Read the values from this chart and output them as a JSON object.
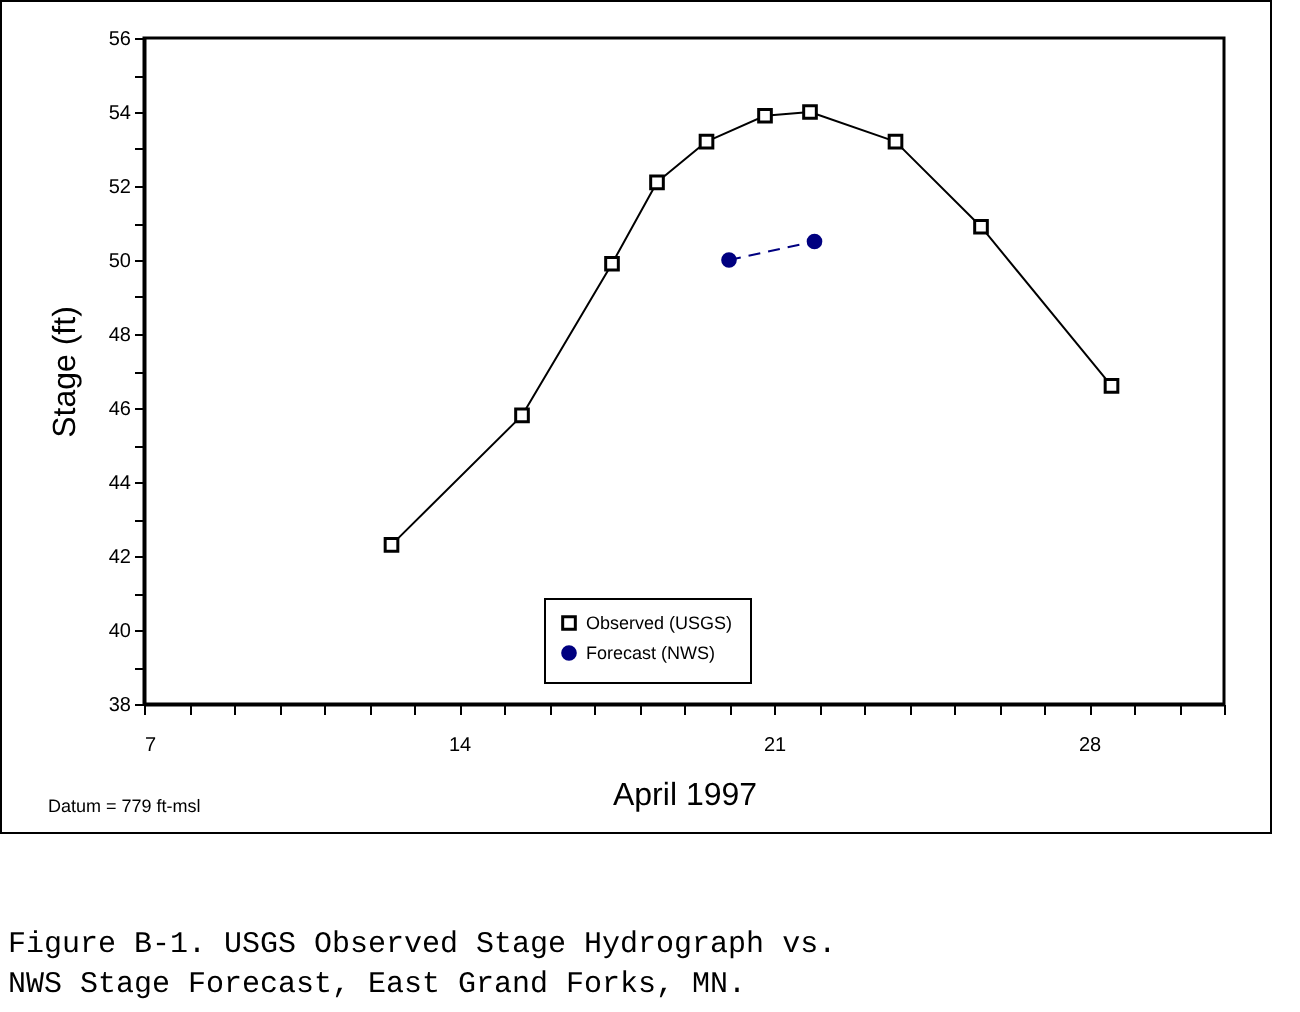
{
  "chart_data": {
    "type": "line",
    "title": "Figure B-1. USGS Observed Stage Hydrograph vs.\n      NWS Stage Forecast, East Grand Forks, MN.",
    "xlabel": "April 1997",
    "ylabel": "Stage (ft)",
    "annotations": [
      "Datum = 779 ft-msl"
    ],
    "xlim": [
      7,
      31
    ],
    "xticks": [
      7,
      {
        "value": 8,
        "label": null
      },
      {
        "value": 9,
        "label": null
      },
      {
        "value": 10,
        "label": null
      },
      {
        "value": 11,
        "label": null
      },
      {
        "value": 12,
        "label": null
      },
      {
        "value": 13,
        "label": null
      },
      14,
      {
        "value": 15,
        "label": null
      },
      {
        "value": 16,
        "label": null
      },
      {
        "value": 17,
        "label": null
      },
      {
        "value": 18,
        "label": null
      },
      {
        "value": 19,
        "label": null
      },
      {
        "value": 20,
        "label": null
      },
      21,
      {
        "value": 22,
        "label": null
      },
      {
        "value": 23,
        "label": null
      },
      {
        "value": 24,
        "label": null
      },
      {
        "value": 25,
        "label": null
      },
      {
        "value": 26,
        "label": null
      },
      {
        "value": 27,
        "label": null
      },
      28,
      {
        "value": 29,
        "label": null
      },
      {
        "value": 30,
        "label": null
      },
      {
        "value": 31,
        "label": null
      }
    ],
    "ylim": [
      38,
      56
    ],
    "yticks": [
      38,
      {
        "value": 39,
        "label": null
      },
      40,
      {
        "value": 41,
        "label": null
      },
      42,
      {
        "value": 43,
        "label": null
      },
      44,
      {
        "value": 45,
        "label": null
      },
      46,
      {
        "value": 47,
        "label": null
      },
      48,
      {
        "value": 49,
        "label": null
      },
      50,
      {
        "value": 51,
        "label": null
      },
      52,
      {
        "value": 53,
        "label": null
      },
      54,
      {
        "value": 55,
        "label": null
      },
      56
    ],
    "grid": false,
    "legend": "bottom",
    "series": [
      {
        "name": "Observed (USGS)",
        "color": "#000000",
        "marker": "square",
        "line_style": "solid",
        "x": [
          12.5,
          15.4,
          17.4,
          18.4,
          19.5,
          20.8,
          21.8,
          23.7,
          25.6,
          28.5
        ],
        "values": [
          42.3,
          45.8,
          49.9,
          52.1,
          53.2,
          53.9,
          54.0,
          53.2,
          50.9,
          46.6
        ]
      },
      {
        "name": "Forecast (NWS)",
        "color": "#000080",
        "marker": "circle",
        "line_style": "dashed",
        "x": [
          20.0,
          21.9
        ],
        "values": [
          50.0,
          50.5
        ]
      }
    ]
  }
}
